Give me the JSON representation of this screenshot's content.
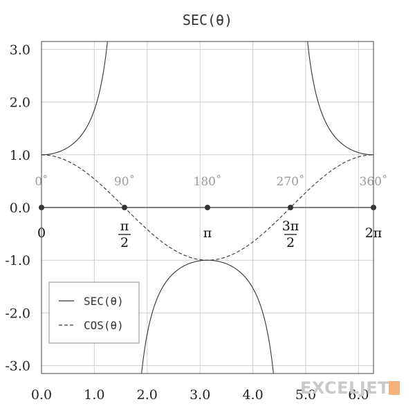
{
  "chart_data": {
    "type": "line",
    "title": "SEC(θ)",
    "xlim": [
      0,
      6.2832
    ],
    "ylim": [
      -3.15,
      3.15
    ],
    "x_ticks": [
      0.0,
      1.0,
      2.0,
      3.0,
      4.0,
      5.0,
      6.0
    ],
    "x_tick_labels": [
      "0.0",
      "1.0",
      "2.0",
      "3.0",
      "4.0",
      "5.0",
      "6.0"
    ],
    "y_ticks": [
      3.0,
      2.0,
      1.0,
      0.0,
      -1.0,
      -2.0,
      -3.0
    ],
    "y_tick_labels": [
      "3.0",
      "2.0",
      "1.0",
      "0.0",
      "-1.0",
      "-2.0",
      "-3.0"
    ],
    "grid": true,
    "legend_position": "bottom-left",
    "series": [
      {
        "name": "SEC(θ)",
        "function": "sec",
        "style": "solid",
        "color": "#333333"
      },
      {
        "name": "COS(θ)",
        "function": "cos",
        "style": "dashed",
        "color": "#333333"
      }
    ],
    "annotations": {
      "degree_labels": [
        {
          "x": 0,
          "label": "0˚"
        },
        {
          "x": 1.5708,
          "label": "90˚"
        },
        {
          "x": 3.1416,
          "label": "180˚"
        },
        {
          "x": 4.7124,
          "label": "270˚"
        },
        {
          "x": 6.2832,
          "label": "360˚"
        }
      ],
      "radian_points": [
        {
          "x": 0,
          "label": "0"
        },
        {
          "x": 1.5708,
          "num": "π",
          "den": "2"
        },
        {
          "x": 3.1416,
          "label": "π"
        },
        {
          "x": 4.7124,
          "num": "3π",
          "den": "2"
        },
        {
          "x": 6.2832,
          "label": "2π"
        }
      ]
    }
  },
  "watermark": {
    "text": "EXCELJET",
    "color": "#c9c9c9",
    "accent": "#f3b27a"
  }
}
